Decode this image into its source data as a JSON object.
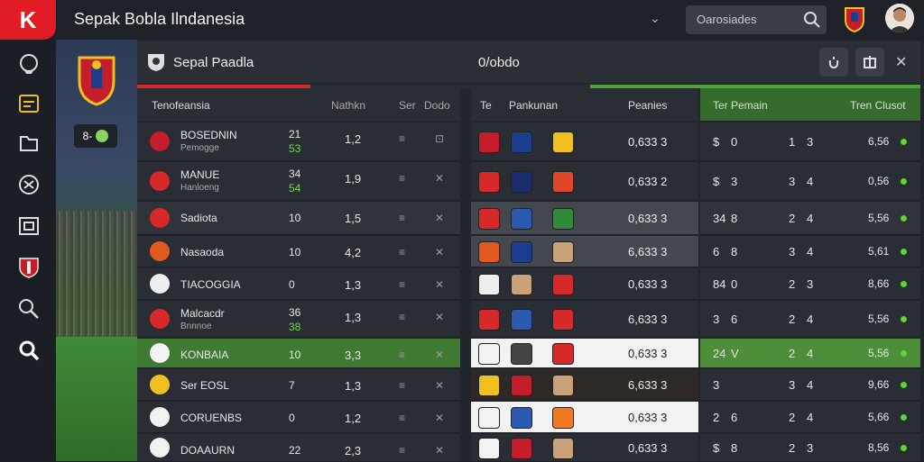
{
  "app": {
    "logo_letter": "K",
    "title": "Sepak Bobla Ilndanesia",
    "accent": "#e21c24"
  },
  "search": {
    "placeholder": "Oarosiades"
  },
  "panel": {
    "title": "Sepal Paadla",
    "center_value": "0/obdo",
    "close": "✕"
  },
  "badge": {
    "text": "8-"
  },
  "left_table": {
    "headers": {
      "name": "Tenofeansia",
      "c1": "Nathkn",
      "c2": "Ser",
      "c3": "Dodo"
    },
    "rows": [
      {
        "name": "BOSEDNIN",
        "sub": "Pemogge",
        "n1": "21",
        "n2": "53",
        "val": "1,2",
        "c2": "≡",
        "c3": "⊡"
      },
      {
        "name": "MANUE",
        "sub": "Hanloeng",
        "n1": "34",
        "n2": "54",
        "val": "1,9",
        "c2": "≡",
        "c3": "✕"
      },
      {
        "name": "Sadiota",
        "sub": "",
        "n1": "10",
        "n2": "",
        "val": "1,5",
        "c2": "≡",
        "c3": "✕"
      },
      {
        "name": "Nasaoda",
        "sub": "",
        "n1": "10",
        "n2": "",
        "val": "4,2",
        "c2": "≡",
        "c3": "✕"
      },
      {
        "name": "TIACOGGIA",
        "sub": "",
        "n1": "0",
        "n2": "",
        "val": "1,3",
        "c2": "≡",
        "c3": "✕"
      },
      {
        "name": "Malcacdr",
        "sub": "Bnnnoe",
        "n1": "36",
        "n2": "38",
        "val": "1,3",
        "c2": "≡",
        "c3": "✕"
      },
      {
        "name": "KONBAIA",
        "sub": "",
        "n1": "10",
        "n2": "",
        "val": "3,3",
        "c2": "≡",
        "c3": "✕"
      },
      {
        "name": "Ser EOSL",
        "sub": "",
        "n1": "7",
        "n2": "",
        "val": "1,3",
        "c2": "≡",
        "c3": "✕"
      },
      {
        "name": "CORUENBS",
        "sub": "",
        "n1": "0",
        "n2": "",
        "val": "1,2",
        "c2": "≡",
        "c3": "✕"
      },
      {
        "name": "DOAAURN",
        "sub": "",
        "n1": "22",
        "n2": "",
        "val": "2,3",
        "c2": "≡",
        "c3": "✕"
      }
    ]
  },
  "mid_table": {
    "headers": {
      "t": "Te",
      "name": "Pankunan",
      "val": "Peanies"
    },
    "rows": [
      "0,633 3",
      "0,633 2",
      "0,633 3",
      "6,633 3",
      "0,633 3",
      "6,633 3",
      "0,633 3",
      "6,633 3",
      "0,633 3",
      "0,633 3"
    ]
  },
  "right_table": {
    "headers": {
      "name": "Ter Pemain",
      "val": "Tren Clusot"
    },
    "rows": [
      {
        "a": "$",
        "b": "0",
        "c": "1",
        "d": "3",
        "val": "6,56"
      },
      {
        "a": "$",
        "b": "3",
        "c": "3",
        "d": "4",
        "val": "0,56"
      },
      {
        "a": "34",
        "b": "8",
        "c": "2",
        "d": "4",
        "val": "5,56"
      },
      {
        "a": "6",
        "b": "8",
        "c": "3",
        "d": "4",
        "val": "5,61"
      },
      {
        "a": "84",
        "b": "0",
        "c": "2",
        "d": "3",
        "val": "8,66"
      },
      {
        "a": "3",
        "b": "6",
        "c": "2",
        "d": "4",
        "val": "5,56"
      },
      {
        "a": "24",
        "b": "V",
        "c": "2",
        "d": "4",
        "val": "5,56"
      },
      {
        "a": "3",
        "b": "",
        "c": "3",
        "d": "4",
        "val": "9,66"
      },
      {
        "a": "2",
        "b": "6",
        "c": "2",
        "d": "4",
        "val": "5,66"
      },
      {
        "a": "$",
        "b": "8",
        "c": "2",
        "d": "3",
        "val": "8,56"
      }
    ]
  }
}
